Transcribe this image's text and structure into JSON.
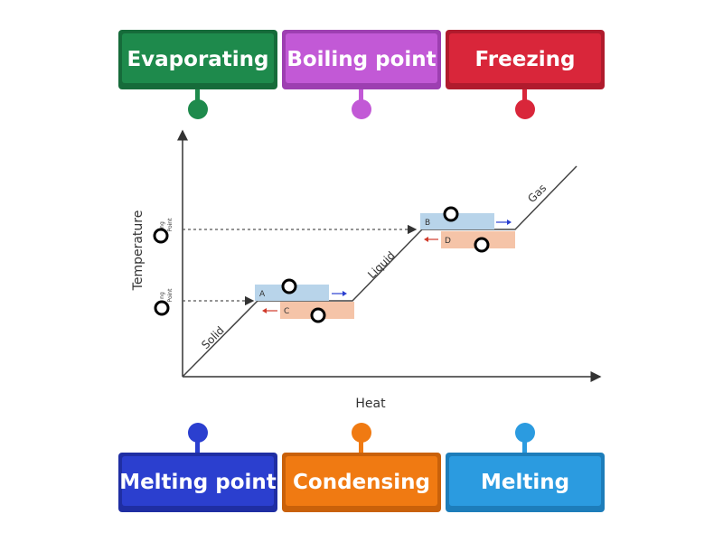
{
  "tiles": {
    "top": [
      {
        "label": "Evaporating",
        "color": "#1e8a4c",
        "dark": "#166b3a"
      },
      {
        "label": "Boiling point",
        "color": "#c259d6",
        "dark": "#9d3fb1"
      },
      {
        "label": "Freezing",
        "color": "#d9263a",
        "dark": "#b01b2d"
      }
    ],
    "bottom": [
      {
        "label": "Melting point",
        "color": "#2b3fcf",
        "dark": "#1f2ea3"
      },
      {
        "label": "Condensing",
        "color": "#f07a12",
        "dark": "#c9610a"
      },
      {
        "label": "Melting",
        "color": "#2b9be0",
        "dark": "#1d7dba"
      }
    ]
  },
  "diagram": {
    "x_axis_label": "Heat",
    "y_axis_label": "Temperature",
    "y_tick_upper": [
      "ng",
      "Point"
    ],
    "y_tick_lower": [
      "ng",
      "Point"
    ],
    "segment_labels": {
      "solid": "Solid",
      "liquid": "Liquid",
      "gas": "Gas"
    },
    "boxes": {
      "a": "A",
      "b": "B",
      "c": "C",
      "d": "D"
    },
    "colors": {
      "line": "#444444",
      "blue_box": "#b8d4ea",
      "orange_box": "#f5c4a8",
      "blue_arrow": "#2a3fd0",
      "red_arrow": "#d03a2a"
    }
  }
}
